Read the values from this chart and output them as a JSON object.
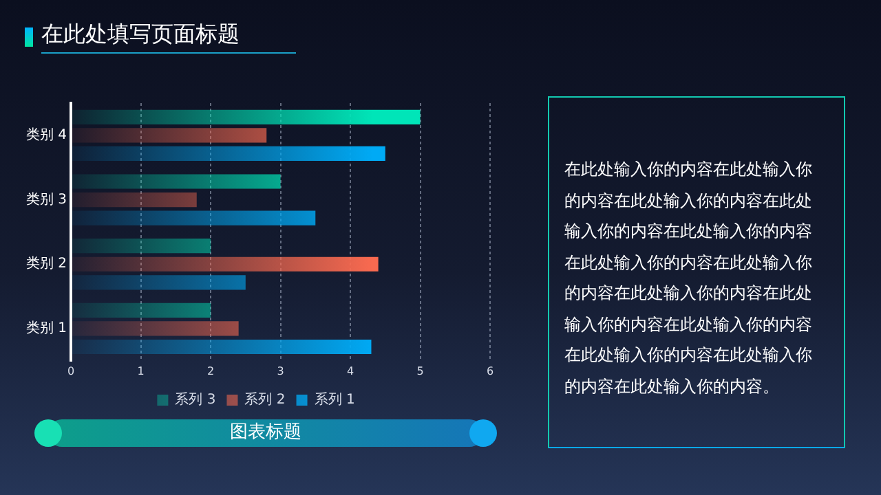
{
  "chart_data": {
    "type": "bar",
    "orientation": "horizontal",
    "title": "图表标题",
    "annotations": [
      "在此处填写页面标题",
      "在此处输入你的内容在此处输入你的内容在此处输入你的内容在此处输入你的内容在此处输入你的内容在此处输入你的内容在此处输入你的内容在此处输入你的内容在此处输入你的内容在此处输入你的内容在此处输入你的内容在此处输入你的内容在此处输入你的内容。"
    ],
    "categories": [
      "类别 4",
      "类别 3",
      "类别 2",
      "类别 1"
    ],
    "series": [
      {
        "name": "系列 3",
        "color": "#00e5b8",
        "values": [
          5,
          3,
          2,
          2
        ]
      },
      {
        "name": "系列 2",
        "color": "#f96a50",
        "values": [
          2.8,
          1.8,
          4.4,
          2.4
        ]
      },
      {
        "name": "系列 1",
        "color": "#00aaf5",
        "values": [
          4.5,
          3.5,
          2.5,
          4.3
        ]
      }
    ],
    "xlim": [
      0,
      6
    ],
    "xticks": [
      0,
      1,
      2,
      3,
      4,
      5,
      6
    ],
    "grid": "x",
    "legend": "bottom"
  }
}
